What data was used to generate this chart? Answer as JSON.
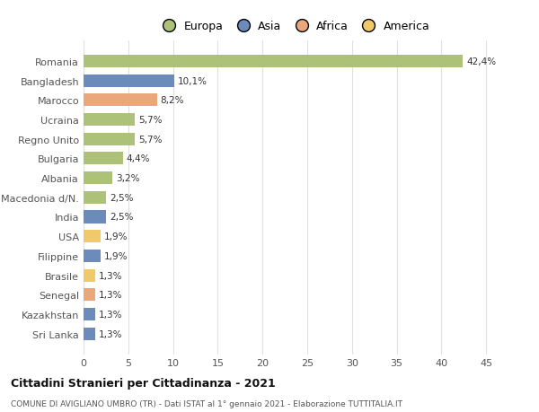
{
  "countries": [
    "Romania",
    "Bangladesh",
    "Marocco",
    "Ucraina",
    "Regno Unito",
    "Bulgaria",
    "Albania",
    "Macedonia d/N.",
    "India",
    "USA",
    "Filippine",
    "Brasile",
    "Senegal",
    "Kazakhstan",
    "Sri Lanka"
  ],
  "values": [
    42.4,
    10.1,
    8.2,
    5.7,
    5.7,
    4.4,
    3.2,
    2.5,
    2.5,
    1.9,
    1.9,
    1.3,
    1.3,
    1.3,
    1.3
  ],
  "labels": [
    "42,4%",
    "10,1%",
    "8,2%",
    "5,7%",
    "5,7%",
    "4,4%",
    "3,2%",
    "2,5%",
    "2,5%",
    "1,9%",
    "1,9%",
    "1,3%",
    "1,3%",
    "1,3%",
    "1,3%"
  ],
  "continents": [
    "Europa",
    "Asia",
    "Africa",
    "Europa",
    "Europa",
    "Europa",
    "Europa",
    "Europa",
    "Asia",
    "America",
    "Asia",
    "America",
    "Africa",
    "Asia",
    "Asia"
  ],
  "continent_colors": {
    "Europa": "#adc178",
    "Asia": "#6b8cba",
    "Africa": "#e8a87c",
    "America": "#f0c96b"
  },
  "legend_items": [
    "Europa",
    "Asia",
    "Africa",
    "America"
  ],
  "legend_colors": [
    "#adc178",
    "#6b8cba",
    "#e8a87c",
    "#f0c96b"
  ],
  "title": "Cittadini Stranieri per Cittadinanza - 2021",
  "subtitle": "COMUNE DI AVIGLIANO UMBRO (TR) - Dati ISTAT al 1° gennaio 2021 - Elaborazione TUTTITALIA.IT",
  "xlim": [
    0,
    47
  ],
  "xticks": [
    0,
    5,
    10,
    15,
    20,
    25,
    30,
    35,
    40,
    45
  ],
  "background_color": "#ffffff",
  "grid_color": "#e0e0e0",
  "bar_height": 0.65
}
